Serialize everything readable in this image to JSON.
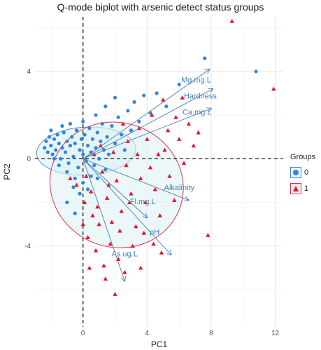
{
  "chart_data": {
    "type": "scatter",
    "title": "Q-mode biplot with arsenic detect status groups",
    "xlabel": "PC1",
    "ylabel": "PC2",
    "xlim": [
      -3,
      12.5
    ],
    "ylim": [
      -7.7,
      6.5
    ],
    "x_ticks": [
      0,
      4,
      8,
      12
    ],
    "y_ticks": [
      -4,
      0,
      4
    ],
    "grid": true,
    "reference_lines": {
      "x": 0,
      "y": 0,
      "style": "dashed"
    },
    "legend": {
      "title": "Groups",
      "position": "right",
      "entries": [
        {
          "label": "0",
          "color": "#2e86de",
          "marker": "circle"
        },
        {
          "label": "1",
          "color": "#e8112d",
          "marker": "triangle"
        }
      ]
    },
    "ellipses": [
      {
        "group": "0",
        "center": [
          0.2,
          0.35
        ],
        "semi_axes": [
          3.1,
          1.1
        ],
        "angle_deg": -3,
        "fill": "#d8f1f5",
        "stroke": "#5b8fc7"
      },
      {
        "group": "1",
        "center": [
          2.1,
          -1.2
        ],
        "semi_axes": [
          4.2,
          2.85
        ],
        "angle_deg": 20,
        "fill": "#ddf1f3",
        "stroke": "#e0314d"
      }
    ],
    "loadings": [
      {
        "label": "Mg.mg.L",
        "x": 7.9,
        "y": 4.1
      },
      {
        "label": "Hardness",
        "x": 8.1,
        "y": 3.2
      },
      {
        "label": "Ca.mg.L",
        "x": 8.0,
        "y": 2.3
      },
      {
        "label": "Alkalinity",
        "x": 6.6,
        "y": -1.9
      },
      {
        "label": "Fl.mg.L",
        "x": 4.0,
        "y": -2.7
      },
      {
        "label": "pH",
        "x": 5.5,
        "y": -4.4
      },
      {
        "label": "As.ug.L",
        "x": 2.6,
        "y": -5.6
      }
    ],
    "series": [
      {
        "name": "0",
        "color": "#2e86de",
        "points": [
          [
            -2.4,
            0.5
          ],
          [
            -2.3,
            0.8
          ],
          [
            -2.2,
            0.3
          ],
          [
            -2.1,
            1.0
          ],
          [
            -2.0,
            0.6
          ],
          [
            -1.9,
            0.2
          ],
          [
            -1.8,
            0.9
          ],
          [
            -1.7,
            0.4
          ],
          [
            -1.6,
            1.1
          ],
          [
            -1.5,
            0.7
          ],
          [
            -1.4,
            0.0
          ],
          [
            -1.3,
            0.5
          ],
          [
            -1.2,
            1.2
          ],
          [
            -1.1,
            0.3
          ],
          [
            -1.0,
            0.8
          ],
          [
            -0.9,
            -0.2
          ],
          [
            -0.8,
            0.6
          ],
          [
            -0.7,
            1.0
          ],
          [
            -0.6,
            0.1
          ],
          [
            -0.5,
            0.7
          ],
          [
            -0.4,
            1.3
          ],
          [
            -0.3,
            -0.4
          ],
          [
            -0.2,
            0.4
          ],
          [
            -0.1,
            0.9
          ],
          [
            0.0,
            0.2
          ],
          [
            0.1,
            1.1
          ],
          [
            0.2,
            -0.1
          ],
          [
            0.3,
            0.6
          ],
          [
            0.4,
            1.4
          ],
          [
            0.5,
            0.3
          ],
          [
            0.6,
            0.9
          ],
          [
            0.7,
            -0.3
          ],
          [
            0.8,
            0.5
          ],
          [
            0.9,
            1.2
          ],
          [
            1.0,
            0.0
          ],
          [
            1.1,
            0.8
          ],
          [
            1.2,
            1.6
          ],
          [
            1.3,
            0.4
          ],
          [
            1.4,
            -0.5
          ],
          [
            1.5,
            1.0
          ],
          [
            1.6,
            0.2
          ],
          [
            1.8,
            1.5
          ],
          [
            2.0,
            0.7
          ],
          [
            2.2,
            1.9
          ],
          [
            2.4,
            1.1
          ],
          [
            2.6,
            0.4
          ],
          [
            2.8,
            2.2
          ],
          [
            3.0,
            1.3
          ],
          [
            3.2,
            2.6
          ],
          [
            3.5,
            1.7
          ],
          [
            3.8,
            2.9
          ],
          [
            4.2,
            2.1
          ],
          [
            4.6,
            3.0
          ],
          [
            5.2,
            2.4
          ],
          [
            6.0,
            3.4
          ],
          [
            7.6,
            4.6
          ],
          [
            10.8,
            4.0
          ],
          [
            -1.5,
            -0.3
          ],
          [
            -1.0,
            -0.6
          ],
          [
            -0.5,
            -0.9
          ],
          [
            0.0,
            -1.1
          ],
          [
            0.3,
            -1.4
          ],
          [
            -1.8,
            0.0
          ],
          [
            -2.0,
            1.3
          ],
          [
            -1.3,
            1.5
          ],
          [
            -0.8,
            1.6
          ],
          [
            0.0,
            1.7
          ],
          [
            0.8,
            2.0
          ],
          [
            1.4,
            2.4
          ],
          [
            2.0,
            2.8
          ],
          [
            0.5,
            -0.8
          ],
          [
            -0.2,
            -1.6
          ],
          [
            -0.6,
            -1.3
          ],
          [
            0.9,
            -0.9
          ],
          [
            -1.0,
            -2.0
          ],
          [
            -0.5,
            -2.5
          ]
        ]
      },
      {
        "name": "1",
        "color": "#e8112d",
        "points": [
          [
            9.3,
            6.3
          ],
          [
            11.9,
            3.2
          ],
          [
            7.8,
            -3.5
          ],
          [
            2.0,
            -6.2
          ],
          [
            0.2,
            -0.8
          ],
          [
            0.5,
            -1.5
          ],
          [
            0.9,
            -2.2
          ],
          [
            1.2,
            -0.6
          ],
          [
            1.5,
            -1.8
          ],
          [
            1.8,
            -2.9
          ],
          [
            2.1,
            -1.0
          ],
          [
            2.4,
            -2.4
          ],
          [
            2.7,
            -0.3
          ],
          [
            3.0,
            -1.6
          ],
          [
            3.3,
            -3.1
          ],
          [
            3.6,
            -0.9
          ],
          [
            3.9,
            -2.0
          ],
          [
            4.2,
            -0.4
          ],
          [
            4.5,
            -1.4
          ],
          [
            4.8,
            -2.6
          ],
          [
            5.1,
            0.4
          ],
          [
            5.4,
            -0.8
          ],
          [
            5.7,
            -1.9
          ],
          [
            6.0,
            0.9
          ],
          [
            6.3,
            -0.2
          ],
          [
            6.6,
            1.6
          ],
          [
            6.9,
            0.6
          ],
          [
            7.2,
            1.2
          ],
          [
            0.3,
            -3.6
          ],
          [
            0.8,
            -4.2
          ],
          [
            1.3,
            -4.9
          ],
          [
            1.7,
            -3.9
          ],
          [
            2.2,
            -4.6
          ],
          [
            2.6,
            -5.2
          ],
          [
            1.0,
            -3.0
          ],
          [
            0.6,
            -2.6
          ],
          [
            0.1,
            -2.0
          ],
          [
            -0.4,
            -1.2
          ],
          [
            -0.8,
            -0.9
          ],
          [
            1.9,
            0.3
          ],
          [
            2.8,
            0.8
          ],
          [
            3.5,
            1.4
          ],
          [
            4.3,
            2.0
          ],
          [
            5.0,
            2.7
          ],
          [
            5.8,
            1.9
          ],
          [
            3.1,
            -4.0
          ],
          [
            3.8,
            -3.4
          ],
          [
            4.4,
            -3.9
          ],
          [
            2.9,
            -2.0
          ],
          [
            1.6,
            -1.2
          ],
          [
            0.7,
            0.2
          ],
          [
            1.1,
            0.6
          ],
          [
            3.4,
            0.2
          ],
          [
            4.0,
            0.9
          ],
          [
            4.7,
            0.2
          ],
          [
            5.3,
            1.3
          ],
          [
            6.2,
            2.8
          ],
          [
            2.3,
            -3.3
          ],
          [
            1.4,
            -5.5
          ],
          [
            0.4,
            -5.0
          ],
          [
            3.6,
            -5.0
          ],
          [
            4.9,
            -4.3
          ],
          [
            2.5,
            1.6
          ],
          [
            0.0,
            -3.0
          ]
        ]
      }
    ]
  }
}
